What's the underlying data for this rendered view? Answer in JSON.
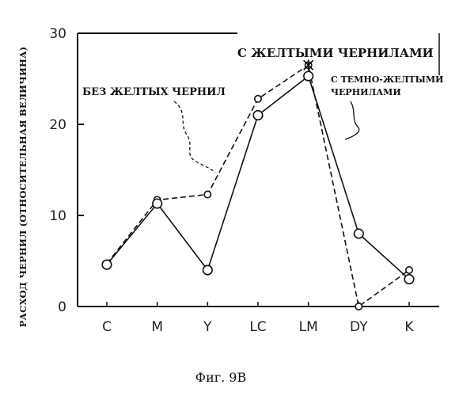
{
  "chart_data": {
    "type": "line",
    "title": "",
    "xlabel": "",
    "ylabel": "РАСХОД ЧЕРНИЛ (ОТНОСИТЕЛЬНАЯ ВЕЛИЧИНА)",
    "categories": [
      "C",
      "M",
      "Y",
      "LC",
      "LM",
      "DY",
      "K"
    ],
    "ylim": [
      0,
      30
    ],
    "yticks": [
      "0",
      "10",
      "20",
      "30"
    ],
    "grid": false,
    "series": [
      {
        "name": "БЕЗ ЖЕЛТЫХ ЧЕРНИЛ",
        "style": "dashed",
        "values": [
          4.7,
          11.7,
          12.3,
          22.8,
          26.5,
          0,
          4.0
        ]
      },
      {
        "name": "С ТЕМНО-ЖЕЛТЫМИ ЧЕРНИЛАМИ",
        "style": "solid",
        "values": [
          4.6,
          11.3,
          4.0,
          21.0,
          25.3,
          8.0,
          3.0
        ]
      }
    ],
    "annotations": [
      {
        "text": "С ЖЕЛТЫМИ ЧЕРНИЛАМИ"
      },
      {
        "text": "БЕЗ ЖЕЛТЫХ ЧЕРНИЛ"
      },
      {
        "lines": [
          "С ТЕМНО-ЖЕЛТЫМИ",
          "ЧЕРНИЛАМИ"
        ]
      }
    ],
    "caption": "Фиг. 9B"
  }
}
